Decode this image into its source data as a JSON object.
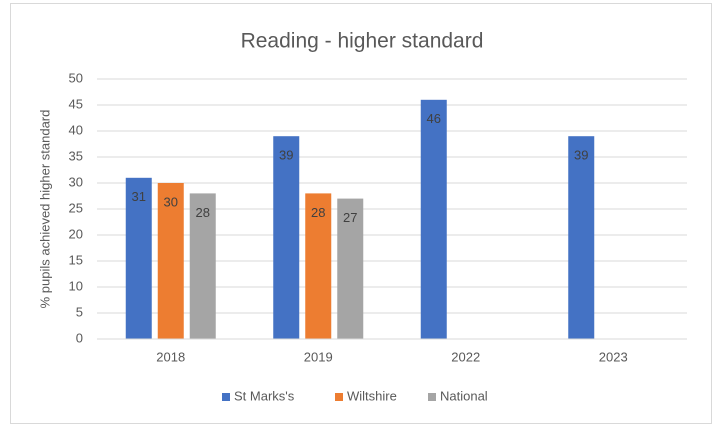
{
  "chart_data": {
    "type": "bar",
    "title": "Reading - higher standard",
    "y_axis_label": "% pupils achieved higher standard",
    "categories": [
      "2018",
      "2019",
      "2022",
      "2023"
    ],
    "series": [
      {
        "name": "St Marks's",
        "color": "#4472c4",
        "values": [
          31,
          39,
          46,
          39
        ]
      },
      {
        "name": "Wiltshire",
        "color": "#ed7d31",
        "values": [
          30,
          28,
          null,
          null
        ]
      },
      {
        "name": "National",
        "color": "#a5a5a5",
        "values": [
          28,
          27,
          null,
          null
        ]
      }
    ],
    "ylim": [
      0,
      50
    ],
    "yticks": [
      0,
      5,
      10,
      15,
      20,
      25,
      30,
      35,
      40,
      45,
      50
    ],
    "grid": true,
    "legend": "bottom",
    "data_labels": true
  }
}
